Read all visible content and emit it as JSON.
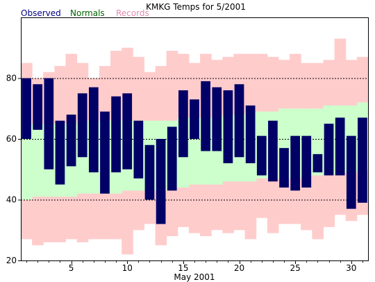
{
  "chart_data": {
    "type": "bar",
    "title": "KMKG Temps for 5/2001",
    "xlabel": "May 2001",
    "ylabel": "",
    "legend": [
      {
        "name": "Observed",
        "color": "#000080"
      },
      {
        "name": "Normals",
        "color": "#006400"
      },
      {
        "name": "Records",
        "color": "#e08cb0"
      }
    ],
    "legend_placement": "top-left",
    "xlim": [
      0.5,
      31.5
    ],
    "ylim": [
      20,
      100
    ],
    "x_ticks": [
      5,
      10,
      15,
      20,
      25,
      30
    ],
    "y_ticks": [
      20,
      40,
      60,
      80
    ],
    "dashed_gridlines": [
      40,
      60,
      80
    ],
    "days": [
      1,
      2,
      3,
      4,
      5,
      6,
      7,
      8,
      9,
      10,
      11,
      12,
      13,
      14,
      15,
      16,
      17,
      18,
      19,
      20,
      21,
      22,
      23,
      24,
      25,
      26,
      27,
      28,
      29,
      30,
      31
    ],
    "series": [
      {
        "name": "Observed",
        "color": "#000066",
        "high": [
          80,
          78,
          80,
          66,
          68,
          75,
          77,
          69,
          74,
          75,
          66,
          58,
          60,
          64,
          76,
          73,
          79,
          77,
          76,
          78,
          71,
          61,
          66,
          57,
          61,
          61,
          55,
          65,
          67,
          61,
          67
        ],
        "low": [
          60,
          63,
          50,
          45,
          51,
          54,
          49,
          42,
          49,
          50,
          47,
          40,
          32,
          43,
          54,
          60,
          56,
          56,
          52,
          54,
          52,
          48,
          46,
          44,
          43,
          44,
          49,
          48,
          48,
          37,
          39
        ]
      },
      {
        "name": "Normals",
        "color": "#ccffcc",
        "high": [
          64,
          65,
          65,
          65,
          65,
          66,
          66,
          66,
          66,
          66,
          66,
          66,
          66,
          66,
          67,
          67,
          67,
          67,
          68,
          68,
          69,
          69,
          69,
          70,
          70,
          70,
          70,
          71,
          71,
          71,
          72
        ],
        "low": [
          40,
          41,
          41,
          41,
          41,
          42,
          42,
          42,
          42,
          43,
          43,
          43,
          43,
          44,
          44,
          45,
          45,
          45,
          46,
          46,
          46,
          47,
          47,
          47,
          47,
          48,
          48,
          48,
          49,
          49,
          50
        ]
      },
      {
        "name": "Records",
        "color": "#ffcccc",
        "high": [
          85,
          80,
          82,
          84,
          88,
          85,
          80,
          84,
          89,
          90,
          87,
          82,
          84,
          89,
          88,
          85,
          88,
          86,
          87,
          88,
          88,
          88,
          87,
          86,
          88,
          85,
          85,
          86,
          93,
          86,
          87
        ],
        "low": [
          27,
          25,
          26,
          26,
          27,
          26,
          27,
          27,
          27,
          22,
          30,
          32,
          25,
          28,
          31,
          29,
          28,
          30,
          29,
          30,
          27,
          34,
          29,
          32,
          32,
          30,
          27,
          31,
          35,
          33,
          35
        ]
      }
    ]
  }
}
